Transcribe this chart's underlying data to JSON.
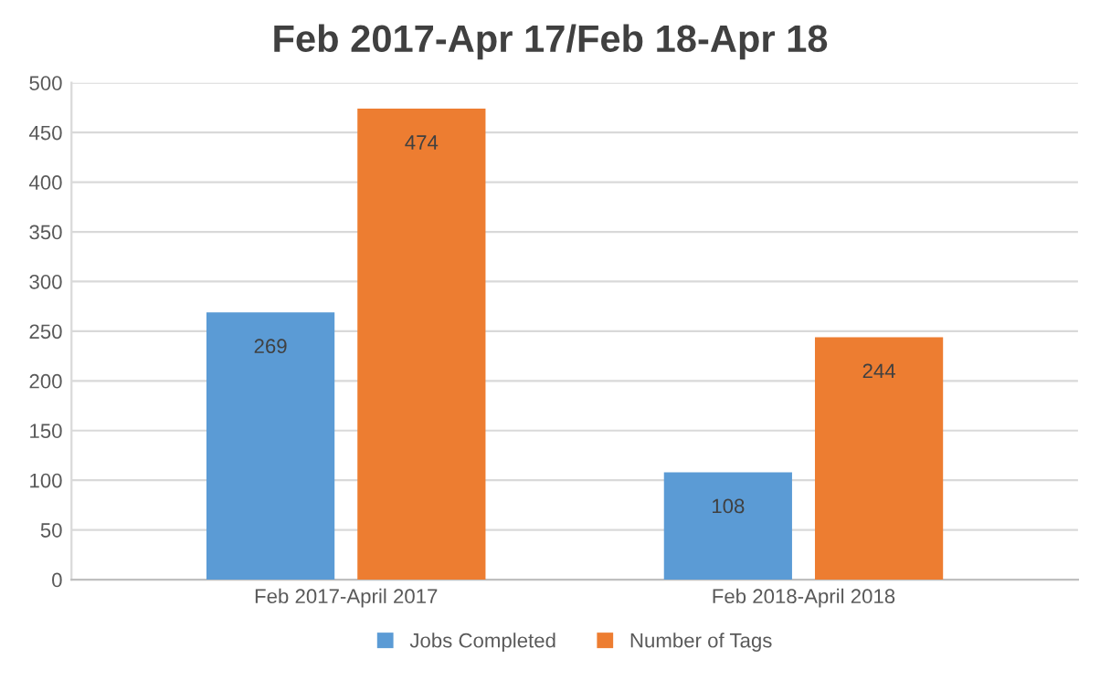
{
  "chart_data": {
    "type": "bar",
    "title": "Feb 2017-Apr 17/Feb 18-Apr 18",
    "categories": [
      "Feb 2017-April 2017",
      "Feb 2018-April 2018"
    ],
    "series": [
      {
        "name": "Jobs Completed",
        "color": "#5b9bd5",
        "values": [
          269,
          108
        ]
      },
      {
        "name": "Number of Tags",
        "color": "#ed7d31",
        "values": [
          474,
          244
        ]
      }
    ],
    "ylim": [
      0,
      500
    ],
    "yticks": [
      0,
      50,
      100,
      150,
      200,
      250,
      300,
      350,
      400,
      450,
      500
    ],
    "grid": "y",
    "legend": "bottom",
    "data_labels": true
  }
}
